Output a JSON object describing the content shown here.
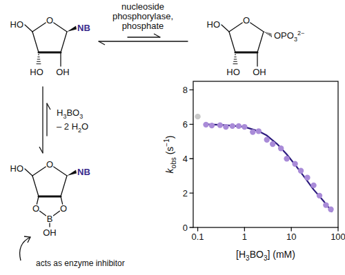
{
  "chart_data": {
    "type": "scatter",
    "x_label": [
      {
        "text": "[H"
      },
      {
        "text": "3",
        "style": "sub"
      },
      {
        "text": "BO"
      },
      {
        "text": "3",
        "style": "sub"
      },
      {
        "text": "] (mM)"
      }
    ],
    "y_label": [
      {
        "text": "k",
        "style": "italic"
      },
      {
        "text": "obs",
        "style": "sub"
      },
      {
        "text": " (s"
      },
      {
        "text": "−1",
        "style": "sup"
      },
      {
        "text": ")"
      }
    ],
    "log": "x",
    "grid": false,
    "xlim": [
      0.08,
      100
    ],
    "xticks": [
      0.1,
      1,
      10,
      100
    ],
    "ylim": [
      0,
      8.5
    ],
    "yticks": [
      0,
      2,
      4,
      6,
      8
    ],
    "series": [
      {
        "type": "scatter",
        "marker": "circle",
        "x": [
          0.1,
          0.15,
          0.2,
          0.3,
          0.4,
          0.55,
          0.75,
          1,
          1.5,
          2,
          3,
          4,
          6,
          8,
          12,
          16,
          22,
          30,
          40,
          55,
          70
        ],
        "values": [
          6.45,
          5.98,
          5.93,
          5.95,
          5.85,
          5.9,
          5.9,
          5.85,
          5.55,
          5.6,
          5.1,
          4.85,
          4.6,
          4.0,
          3.7,
          3.3,
          2.9,
          2.45,
          1.85,
          1.3,
          1.05
        ],
        "colors": [
          "#c8c8c8",
          "#a98bd8",
          "#a98bd8",
          "#a98bd8",
          "#a98bd8",
          "#a98bd8",
          "#a98bd8",
          "#a98bd8",
          "#a98bd8",
          "#a98bd8",
          "#a98bd8",
          "#a98bd8",
          "#a98bd8",
          "#a98bd8",
          "#a98bd8",
          "#a98bd8",
          "#a98bd8",
          "#a98bd8",
          "#a98bd8",
          "#a98bd8",
          "#a98bd8"
        ]
      },
      {
        "type": "line",
        "line_style": "solid",
        "color": "#2d1b7e",
        "x": [
          0.15,
          0.3,
          0.5,
          1,
          2,
          3,
          5,
          8,
          12,
          20,
          30,
          50,
          75
        ],
        "values": [
          6.0,
          5.97,
          5.93,
          5.85,
          5.6,
          5.35,
          4.85,
          4.25,
          3.65,
          2.85,
          2.2,
          1.5,
          0.9
        ]
      }
    ]
  },
  "scheme": {
    "enzyme_label": [
      "nucleoside",
      "phosphorylase,",
      "phosphate"
    ],
    "reagent": [
      {
        "text": "H"
      },
      {
        "text": "3",
        "style": "sub"
      },
      {
        "text": "BO"
      },
      {
        "text": "3",
        "style": "sub"
      }
    ],
    "byproduct": [
      {
        "text": "– 2 H"
      },
      {
        "text": "2",
        "style": "sub"
      },
      {
        "text": "O"
      }
    ],
    "annotation": "acts as enzyme inhibitor",
    "structures": [
      {
        "c5": "HO",
        "ring_o": "O",
        "c3": "HO",
        "c2": "OH",
        "c1": [
          {
            "text": "NB"
          }
        ]
      },
      {
        "c5": "HO",
        "ring_o": "O",
        "c3": "HO",
        "c2": "OH",
        "c1": [
          {
            "text": "OPO"
          },
          {
            "text": "3",
            "style": "sub"
          },
          {
            "text": "2−",
            "style": "sup"
          }
        ]
      },
      {
        "c5": "HO",
        "ring_o": "O",
        "o3": "O",
        "o2": "O",
        "boron": "B",
        "boron_oh": "OH",
        "c1": [
          {
            "text": "NB"
          }
        ]
      }
    ]
  }
}
